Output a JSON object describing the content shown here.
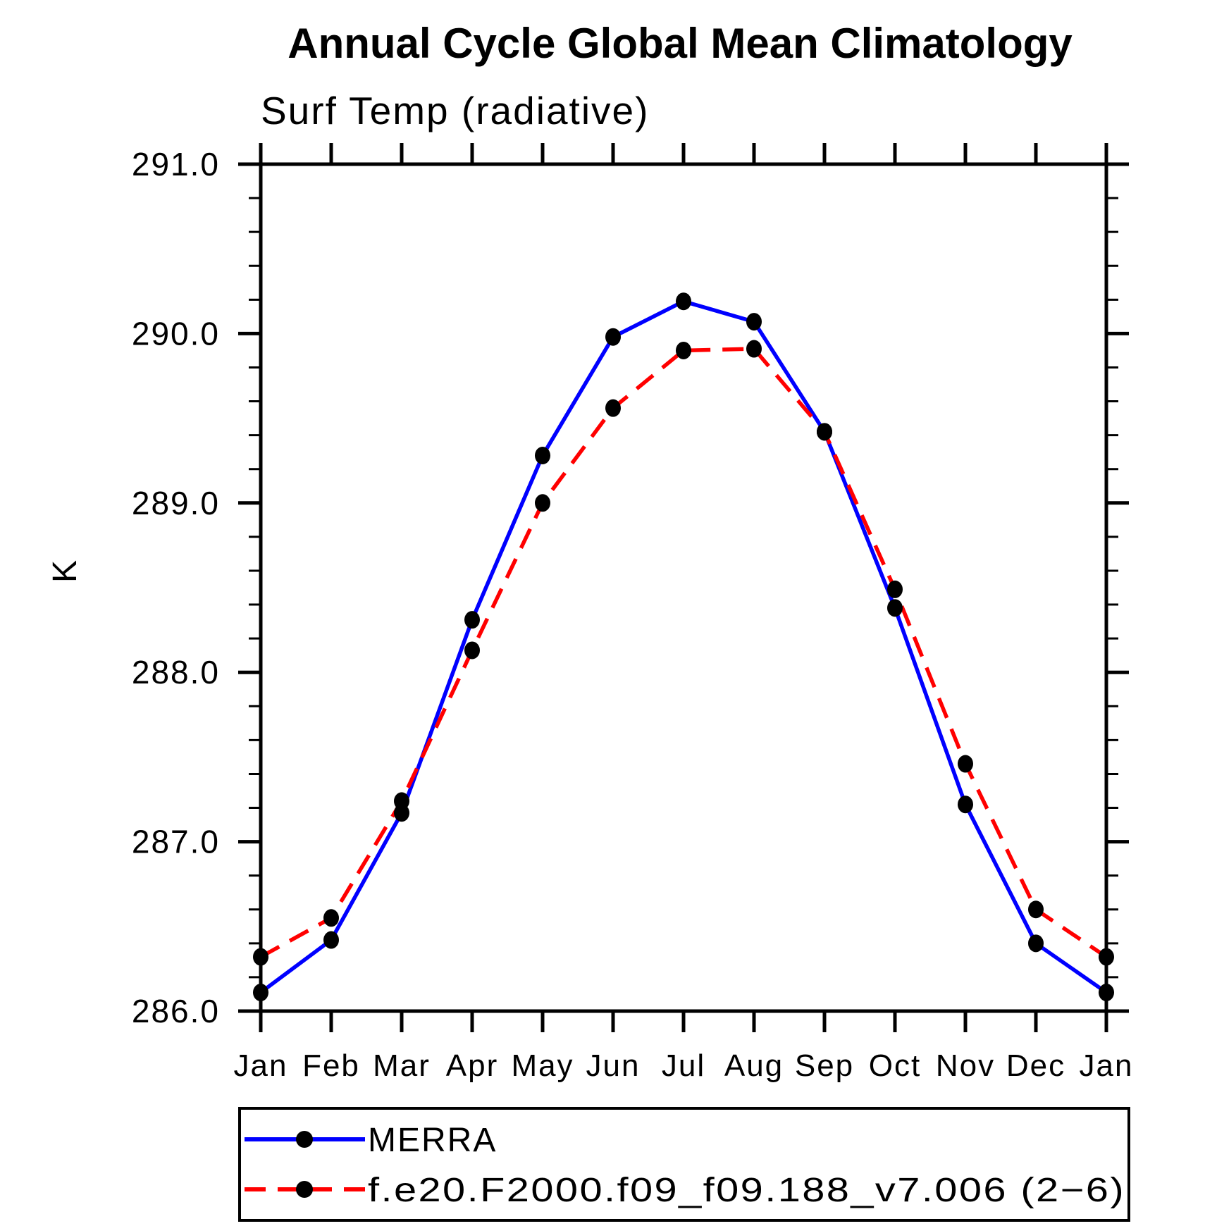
{
  "chart_data": {
    "type": "line",
    "title": "Annual Cycle Global Mean Climatology",
    "subtitle": "Surf Temp (radiative)",
    "ylabel": "K",
    "xlabel": "",
    "x_categories": [
      "Jan",
      "Feb",
      "Mar",
      "Apr",
      "May",
      "Jun",
      "Jul",
      "Aug",
      "Sep",
      "Oct",
      "Nov",
      "Dec",
      "Jan"
    ],
    "ylim": [
      286.0,
      291.0
    ],
    "y_major_ticks": [
      {
        "value": 286.0,
        "label": "286.0"
      },
      {
        "value": 287.0,
        "label": "287.0"
      },
      {
        "value": 288.0,
        "label": "288.0"
      },
      {
        "value": 289.0,
        "label": "289.0"
      },
      {
        "value": 290.0,
        "label": "290.0"
      },
      {
        "value": 291.0,
        "label": "291.0"
      }
    ],
    "y_minor_step": 0.2,
    "grid": "off",
    "legend_position": "below-plot-left",
    "axis_color": "#000000",
    "marker_shape": "filled-circle",
    "series": [
      {
        "name": "MERRA",
        "color": "#0000ff",
        "line_style": "solid",
        "marker_color": "#000000",
        "values": [
          286.11,
          286.42,
          287.17,
          288.31,
          289.28,
          289.98,
          290.19,
          290.07,
          289.42,
          288.38,
          287.22,
          286.4,
          286.11
        ]
      },
      {
        "name": "f.e20.F2000.f09_f09.188_v7.006 (2−6)",
        "color": "#ff0000",
        "line_style": "dashed",
        "marker_color": "#000000",
        "values": [
          286.32,
          286.55,
          287.24,
          288.13,
          289.0,
          289.56,
          289.9,
          289.91,
          289.42,
          288.49,
          287.46,
          286.6,
          286.32
        ]
      }
    ]
  }
}
